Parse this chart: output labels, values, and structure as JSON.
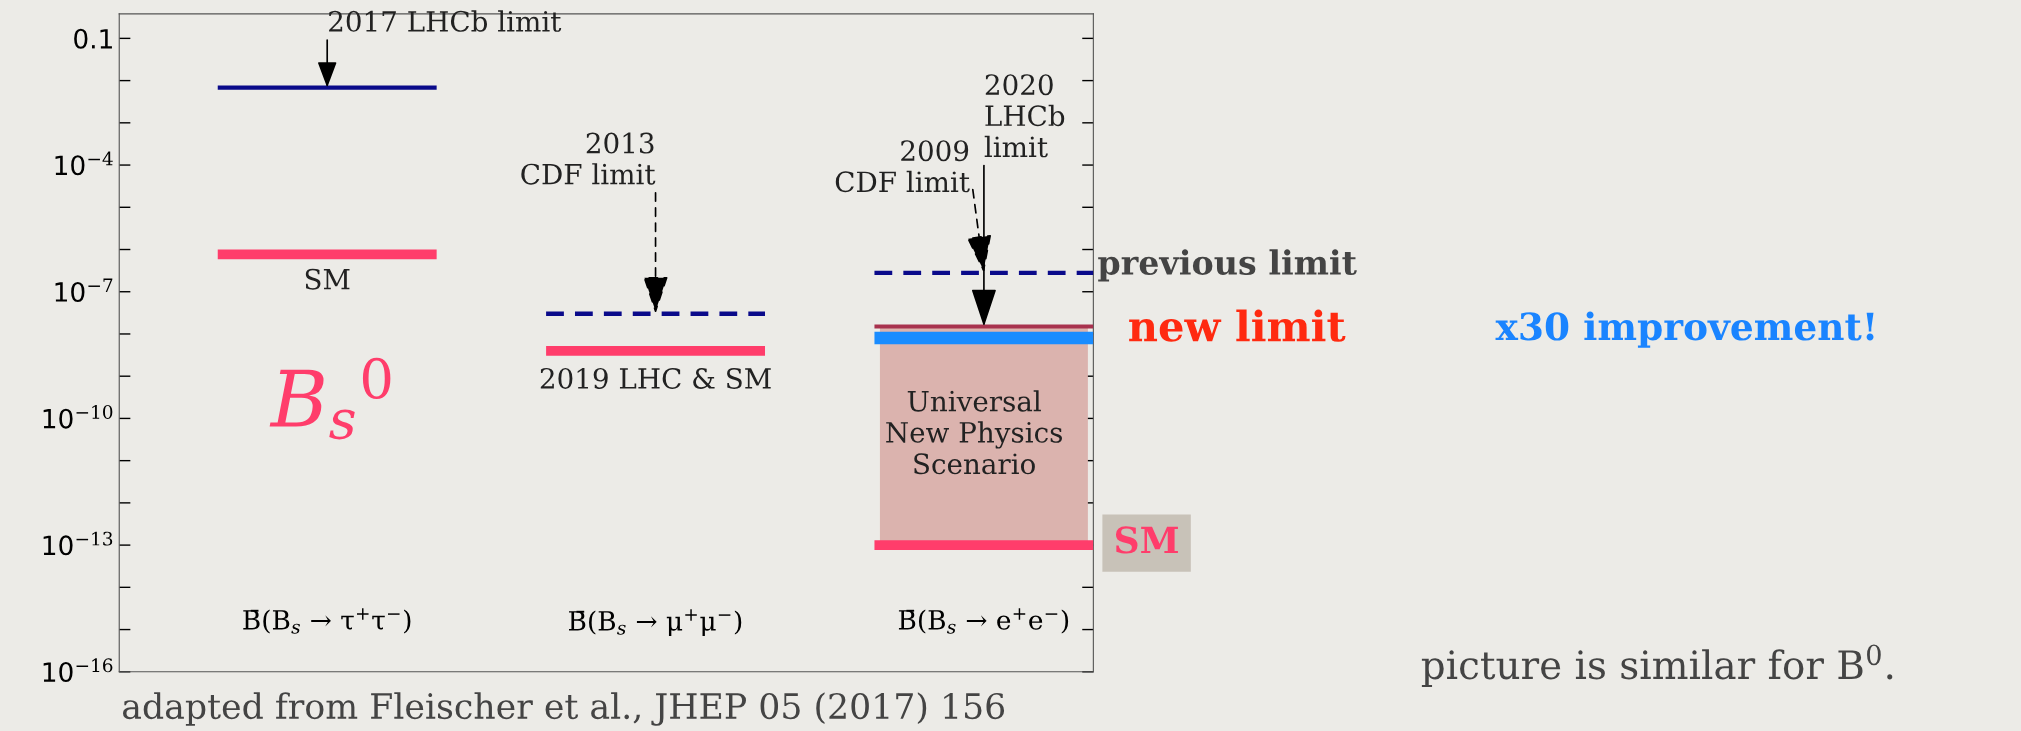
{
  "chart_data": {
    "type": "line",
    "log": "y",
    "ylim": [
      1e-16,
      0.38
    ],
    "categories": [
      null,
      "B̄(B$_{s}$ → τ$^{+}$τ$^{−}$)",
      null,
      null,
      "B̄(B$_{s}$ → μ$^{+}$μ$^{−}$)",
      null,
      null,
      "B̄(B$_{s}$ → e$^{+}$e$^{−}$)",
      null
    ],
    "yticks": [
      {
        "value": 1e-16,
        "label": "10$^{−16}$"
      },
      {
        "value": 1e-15,
        "label": null
      },
      {
        "value": 1e-14,
        "label": null
      },
      {
        "value": 1e-13,
        "label": "10$^{−13}$"
      },
      {
        "value": 1e-12,
        "label": null
      },
      {
        "value": 1e-11,
        "label": null
      },
      {
        "value": 1e-10,
        "label": "10$^{−10}$"
      },
      {
        "value": 1e-09,
        "label": null
      },
      {
        "value": 1e-08,
        "label": null
      },
      {
        "value": 1e-07,
        "label": "10$^{−7}$"
      },
      {
        "value": 1e-06,
        "label": null
      },
      {
        "value": 1e-05,
        "label": null
      },
      {
        "value": 0.0001,
        "label": "10$^{−4}$"
      },
      {
        "value": 0.001,
        "label": null
      },
      {
        "value": 0.01,
        "label": null
      },
      0.1
    ],
    "grid": false,
    "series": [
      {
        "type": "bar",
        "base": [
          null,
          null,
          null,
          null,
          null,
          null,
          null,
          1e-13,
          null
        ],
        "values": [
          null,
          null,
          null,
          null,
          null,
          null,
          null,
          1.5e-08,
          null
        ],
        "color": "#dbb3ae"
      },
      {
        "values": [
          0.0068,
          0.0068,
          0.0068,
          null,
          null,
          null,
          null,
          null,
          null
        ],
        "color": "#0a0a8a",
        "line_style": "solid"
      },
      {
        "values": [
          7.7e-07,
          7.7e-07,
          7.7e-07,
          null,
          null,
          null,
          null,
          null,
          null
        ],
        "color": "#ff3d6b",
        "line_style": "solid"
      },
      {
        "values": [
          null,
          null,
          null,
          3e-08,
          3e-08,
          3e-08,
          null,
          null,
          null
        ],
        "color": "#0a0a8a",
        "line_style": "dashed"
      },
      {
        "values": [
          null,
          null,
          null,
          4e-09,
          4e-09,
          4e-09,
          null,
          null,
          null
        ],
        "color": "#ff3d6b",
        "line_style": "solid"
      },
      {
        "values": [
          null,
          null,
          null,
          null,
          null,
          null,
          2.8e-07,
          2.8e-07,
          2.8e-07
        ],
        "color": "#0a0a8a",
        "line_style": "dashed"
      },
      {
        "values": [
          null,
          null,
          null,
          null,
          null,
          null,
          1.5e-08,
          1.5e-08,
          1.5e-08
        ],
        "color": "#a8324e",
        "line_style": "solid"
      },
      {
        "values": [
          null,
          null,
          null,
          null,
          null,
          null,
          8e-09,
          8e-09,
          8e-09
        ],
        "color": "#1a8cff",
        "line_style": "solid"
      },
      {
        "values": [
          null,
          null,
          null,
          null,
          null,
          null,
          1e-13,
          1e-13,
          1e-13
        ],
        "color": "#ff3d6b",
        "line_style": "solid"
      }
    ],
    "annotations": [
      {
        "text": "2017 LHCb limit",
        "x": "B̄(B$_{s}$ → τ$^{+}$τ$^{−}$)",
        "y": 0.0068
      },
      {
        "text": "SM",
        "x": "B̄(B$_{s}$ → τ$^{+}$τ$^{−}$)",
        "y": 7.7e-07
      },
      {
        "text": "2013\nCDF limit",
        "x": "B̄(B$_{s}$ → μ$^{+}$μ$^{−}$)",
        "y": 3e-08
      },
      {
        "text": "2019 LHC & SM",
        "x": "B̄(B$_{s}$ → μ$^{+}$μ$^{−}$)",
        "y": 4e-09
      },
      {
        "text": "2009\nCDF limit",
        "x": "B̄(B$_{s}$ → e$^{+}$e$^{−}$)",
        "y": 2.8e-07
      },
      {
        "text": "2020\nLHCb\nlimit",
        "x": "B̄(B$_{s}$ → e$^{+}$e$^{−}$)",
        "y": 1.5e-08
      },
      "Universal\nNew Physics\nScenario",
      "previous limit",
      "new limit",
      "x30 improvement!",
      "SM",
      "B$_{s}$$^{0}$",
      "picture is similar for B$^{0}$.",
      "adapted from Fleischer et al., JHEP 05 (2017) 156"
    ]
  }
}
